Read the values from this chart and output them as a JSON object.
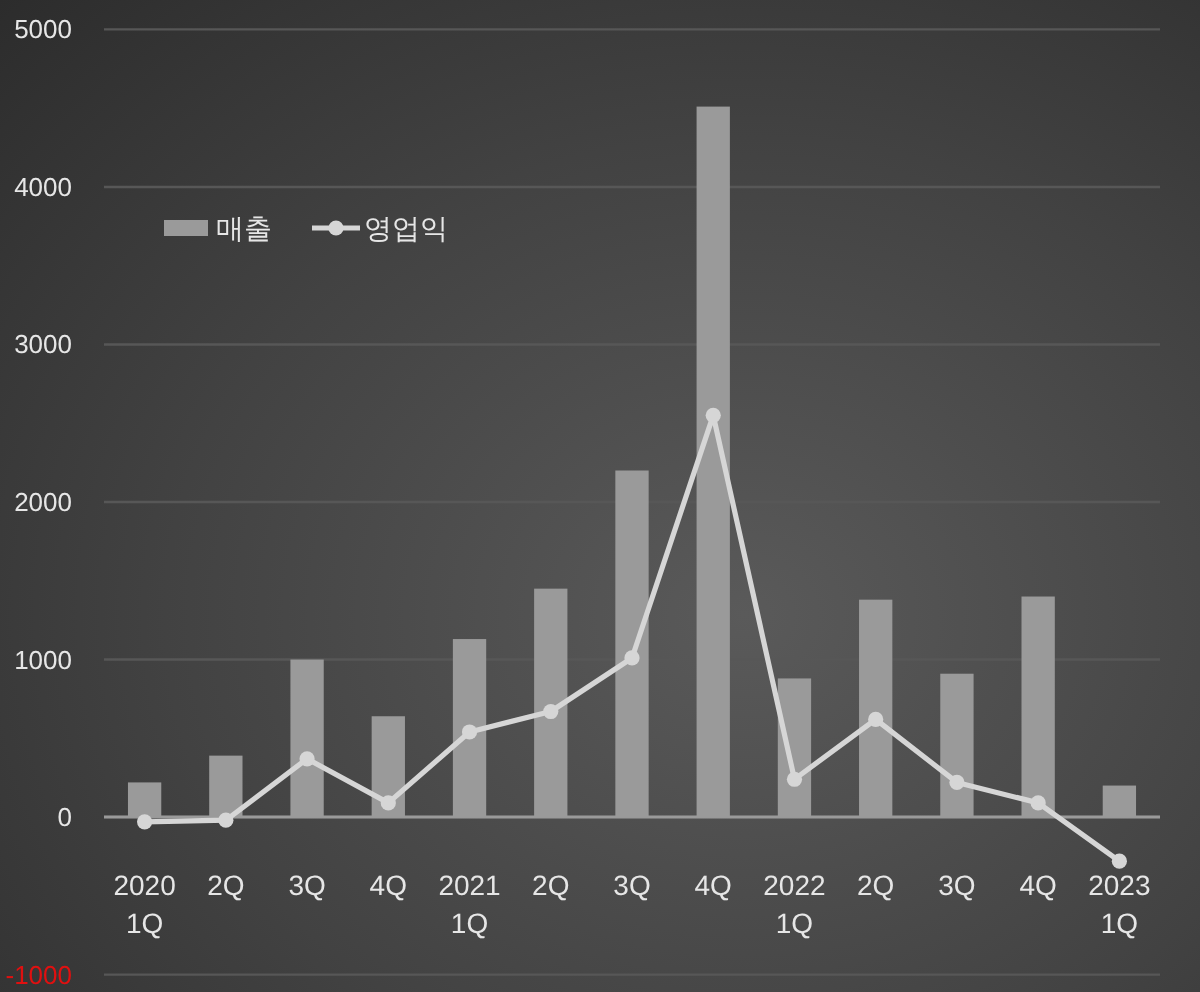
{
  "chart_data": {
    "type": "bar",
    "categories": [
      "2020\n1Q",
      "2Q",
      "3Q",
      "4Q",
      "2021\n1Q",
      "2Q",
      "3Q",
      "4Q",
      "2022\n1Q",
      "2Q",
      "3Q",
      "4Q",
      "2023\n1Q"
    ],
    "series": [
      {
        "name": "매출",
        "color": "#9a9a9a",
        "values": [
          220,
          390,
          1000,
          640,
          1130,
          1450,
          2200,
          4510,
          880,
          1380,
          910,
          1400,
          200
        ]
      },
      {
        "name": "영업익",
        "type": "line",
        "color": "#d6d6d6",
        "values": [
          -30,
          -20,
          370,
          90,
          540,
          670,
          1010,
          2550,
          240,
          620,
          220,
          90,
          -280
        ]
      }
    ],
    "ylim": [
      -1000,
      5000
    ],
    "yticks": [
      -1000,
      0,
      1000,
      2000,
      3000,
      4000,
      5000
    ],
    "grid": "y",
    "legend": "top left",
    "marker": "circle",
    "line_style": "solid"
  }
}
